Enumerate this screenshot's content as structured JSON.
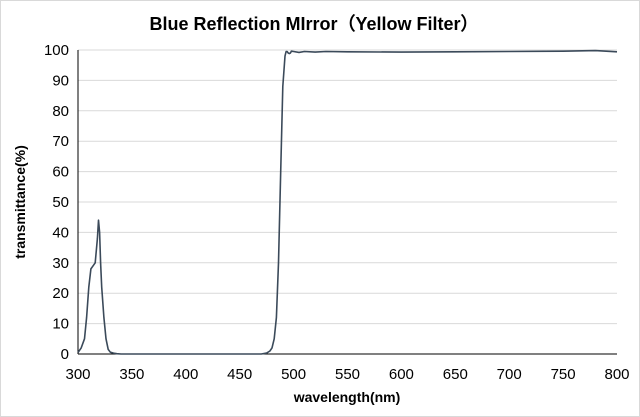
{
  "chart_data": {
    "type": "line",
    "title": "Blue Reflection MIrror（Yellow Filter）",
    "xlabel": "wavelength(nm)",
    "ylabel": "transmittance(%)",
    "xlim": [
      300,
      800
    ],
    "ylim": [
      0,
      100
    ],
    "xticks": [
      "300",
      "350",
      "400",
      "450",
      "500",
      "550",
      "600",
      "650",
      "700",
      "750",
      "800"
    ],
    "yticks": [
      "0",
      "10",
      "20",
      "30",
      "40",
      "50",
      "60",
      "70",
      "80",
      "90",
      "100"
    ],
    "grid": "horizontal",
    "legend": "none",
    "line_color": "#3b4a5a",
    "axis_color": "#000000",
    "grid_color": "#d9d9d9",
    "series": [
      {
        "x": [
          300,
          303,
          306,
          308,
          310,
          312,
          314,
          316,
          318,
          319,
          320,
          321,
          322,
          324,
          326,
          328,
          330,
          333,
          336,
          340,
          345,
          350,
          360,
          380,
          400,
          420,
          440,
          460,
          470,
          475,
          478,
          480,
          482,
          484,
          486,
          488,
          490,
          492,
          493,
          494,
          495,
          496,
          497,
          498,
          500,
          505,
          510,
          520,
          530,
          550,
          600,
          650,
          700,
          750,
          780,
          790,
          800
        ],
        "y": [
          0.5,
          2,
          5,
          12,
          22,
          28,
          29,
          30,
          38,
          44,
          40,
          30,
          22,
          12,
          5,
          1.5,
          0.6,
          0.3,
          0.1,
          0,
          0,
          0,
          0,
          0,
          0,
          0,
          0,
          0,
          0,
          0.3,
          1,
          2,
          5,
          12,
          30,
          60,
          88,
          98,
          99.5,
          99.5,
          99,
          98.8,
          99,
          99.6,
          99.5,
          99.2,
          99.5,
          99.3,
          99.5,
          99.4,
          99.3,
          99.4,
          99.5,
          99.6,
          99.8,
          99.6,
          99.4
        ]
      }
    ]
  }
}
